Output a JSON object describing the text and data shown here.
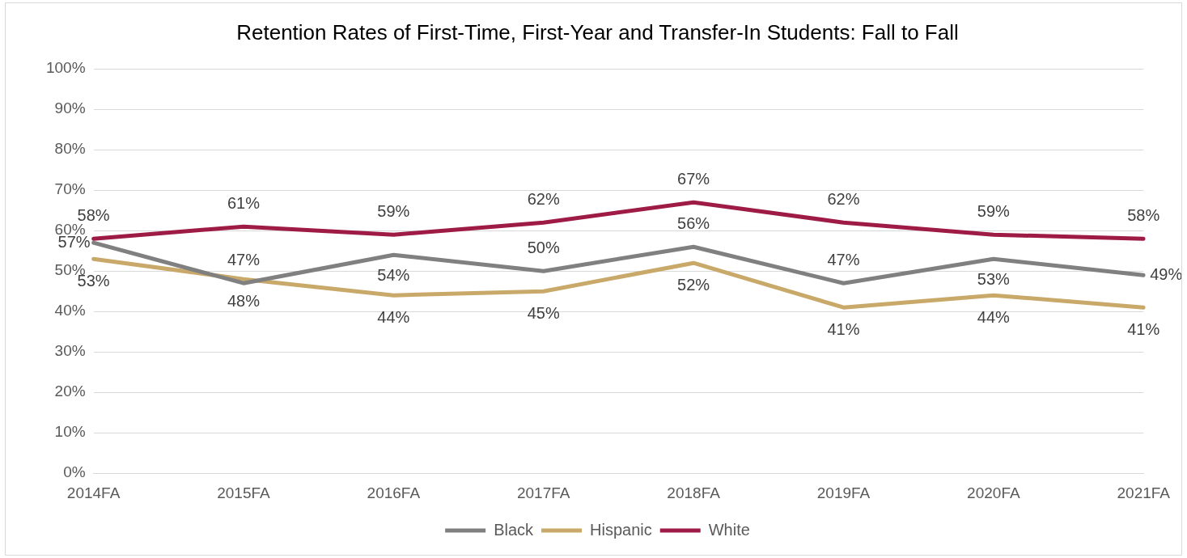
{
  "chart_data": {
    "type": "line",
    "title": "Retention Rates of First-Time, First-Year and Transfer-In Students: Fall to Fall",
    "categories": [
      "2014FA",
      "2015FA",
      "2016FA",
      "2017FA",
      "2018FA",
      "2019FA",
      "2020FA",
      "2021FA"
    ],
    "series": [
      {
        "name": "Black",
        "color": "#808080",
        "values": [
          57,
          47,
          54,
          50,
          56,
          47,
          53,
          49
        ],
        "value_labels": [
          "57%",
          "47%",
          "54%",
          "50%",
          "56%",
          "47%",
          "53%",
          "49%"
        ]
      },
      {
        "name": "Hispanic",
        "color": "#c9a96a",
        "values": [
          53,
          48,
          44,
          45,
          52,
          41,
          44,
          41
        ],
        "value_labels": [
          "53%",
          "48%",
          "44%",
          "45%",
          "52%",
          "41%",
          "44%",
          "41%"
        ]
      },
      {
        "name": "White",
        "color": "#9e1b46",
        "values": [
          58,
          61,
          59,
          62,
          67,
          62,
          59,
          58
        ],
        "value_labels": [
          "58%",
          "61%",
          "59%",
          "62%",
          "67%",
          "62%",
          "59%",
          "58%"
        ]
      }
    ],
    "ylim": [
      0,
      100
    ],
    "yticks": [
      {
        "value": 0,
        "label": "0%"
      },
      {
        "value": 10,
        "label": "10%"
      },
      {
        "value": 20,
        "label": "20%"
      },
      {
        "value": 30,
        "label": "30%"
      },
      {
        "value": 40,
        "label": "40%"
      },
      {
        "value": 50,
        "label": "50%"
      },
      {
        "value": 60,
        "label": "60%"
      },
      {
        "value": 70,
        "label": "70%"
      },
      {
        "value": 80,
        "label": "80%"
      },
      {
        "value": 90,
        "label": "90%"
      },
      {
        "value": 100,
        "label": "100%"
      }
    ],
    "grid": "y",
    "legend": "bottom",
    "marker": "none",
    "line_style": "solid"
  }
}
